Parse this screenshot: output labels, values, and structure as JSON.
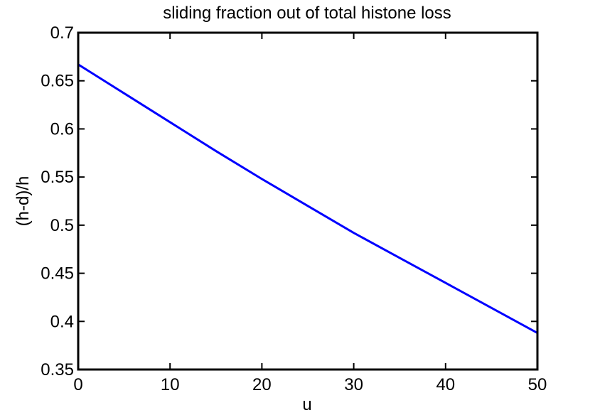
{
  "chart_data": {
    "type": "line",
    "title": "sliding fraction out of total histone loss",
    "xlabel": "u",
    "ylabel": "(h-d)/h",
    "xlim": [
      0,
      50
    ],
    "ylim": [
      0.35,
      0.7
    ],
    "xticks": [
      0,
      10,
      20,
      30,
      40,
      50
    ],
    "xtick_labels": [
      "0",
      "10",
      "20",
      "30",
      "40",
      "50"
    ],
    "yticks": [
      0.35,
      0.4,
      0.45,
      0.5,
      0.55,
      0.6,
      0.65,
      0.7
    ],
    "ytick_labels": [
      "0.35",
      "0.4",
      "0.45",
      "0.5",
      "0.55",
      "0.6",
      "0.65",
      "0.7"
    ],
    "grid": false,
    "legend": null,
    "series": [
      {
        "color": "#0000ff",
        "x": [
          0,
          5,
          10,
          15,
          20,
          25,
          30,
          35,
          40,
          45,
          50
        ],
        "y": [
          0.667,
          0.637,
          0.607,
          0.577,
          0.548,
          0.52,
          0.492,
          0.466,
          0.44,
          0.414,
          0.388
        ]
      }
    ]
  }
}
